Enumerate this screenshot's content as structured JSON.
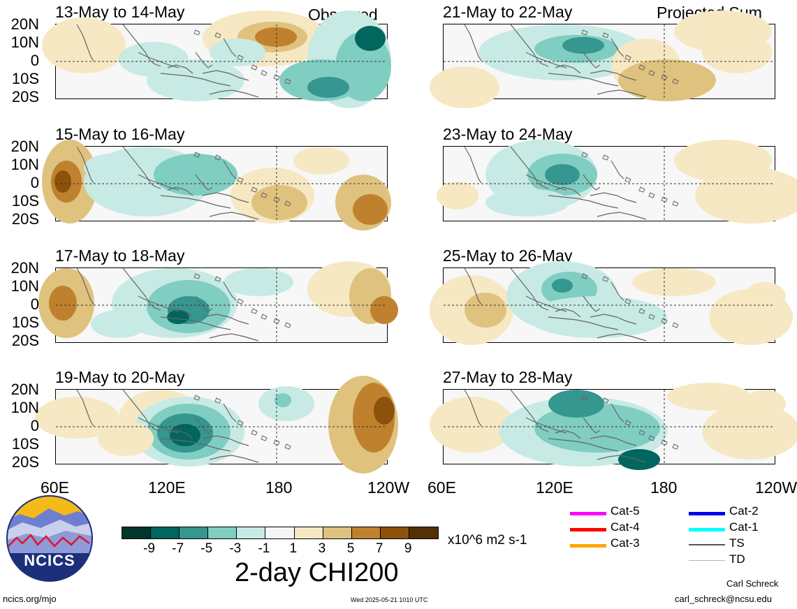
{
  "columns": {
    "left_label": "Observed",
    "right_label": "Projected Sum"
  },
  "panels": [
    {
      "id": "p1",
      "title": "13-May to 14-May"
    },
    {
      "id": "p2",
      "title": "15-May to 16-May"
    },
    {
      "id": "p3",
      "title": "17-May to 18-May"
    },
    {
      "id": "p4",
      "title": "19-May to 20-May"
    },
    {
      "id": "p5",
      "title": "21-May to 22-May"
    },
    {
      "id": "p6",
      "title": "23-May to 24-May"
    },
    {
      "id": "p7",
      "title": "25-May to 26-May"
    },
    {
      "id": "p8",
      "title": "27-May to 28-May"
    }
  ],
  "lat_labels": [
    "20N",
    "10N",
    "0",
    "10S",
    "20S"
  ],
  "lon_labels_left": [
    "60E",
    "120E",
    "180",
    "120W"
  ],
  "lon_labels_right": [
    "60E",
    "120E",
    "180",
    "120W"
  ],
  "colorbar": {
    "colors": [
      "#01362d",
      "#01665e",
      "#35978f",
      "#80cdc1",
      "#c7eae5",
      "#f5f5f5",
      "#f6e8c3",
      "#dfc27d",
      "#bf812d",
      "#8c510a",
      "#543005"
    ],
    "labels": [
      "-9",
      "-7",
      "-5",
      "-3",
      "-1",
      "1",
      "3",
      "5",
      "7",
      "9"
    ],
    "units": "x10^6 m2 s-1",
    "title": "2-day CHI200"
  },
  "storm_legend": [
    {
      "label": "Cat-5",
      "color": "#ff00ff"
    },
    {
      "label": "Cat-4",
      "color": "#ff0000"
    },
    {
      "label": "Cat-3",
      "color": "#ffa500"
    },
    {
      "label": "Cat-2",
      "color": "#0000ee"
    },
    {
      "label": "Cat-1",
      "color": "#00ffff"
    },
    {
      "label": "TS",
      "color": "#555555"
    },
    {
      "label": "TD",
      "color": "#b4b4b4"
    }
  ],
  "logo": {
    "text": "NCICS"
  },
  "footer": {
    "url": "ncics.org/mjo",
    "timestamp": "Wed 2025-05-21 1010 UTC",
    "author": "Carl Schreck",
    "email": "carl_schreck@ncsu.edu"
  }
}
